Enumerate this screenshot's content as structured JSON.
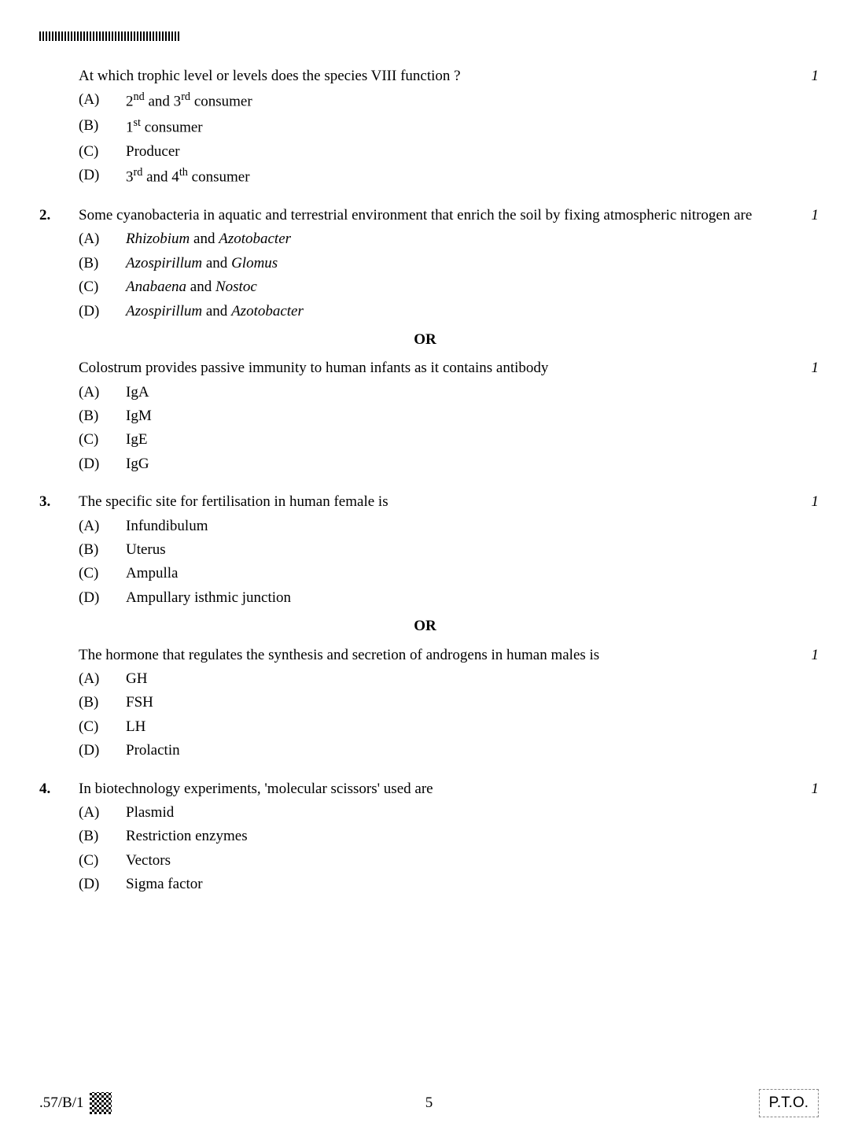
{
  "q1_continued": {
    "stem": "At which trophic level or levels does the species VIII function ?",
    "marks": "1",
    "options": [
      {
        "label": "(A)",
        "html": "2<sup>nd</sup> and 3<sup>rd</sup> consumer"
      },
      {
        "label": "(B)",
        "html": "1<sup>st</sup> consumer"
      },
      {
        "label": "(C)",
        "html": "Producer"
      },
      {
        "label": "(D)",
        "html": "3<sup>rd</sup> and 4<sup>th</sup> consumer"
      }
    ]
  },
  "q2": {
    "number": "2.",
    "stem": "Some cyanobacteria in aquatic and terrestrial environment that enrich the soil by fixing atmospheric nitrogen are",
    "marks": "1",
    "options": [
      {
        "label": "(A)",
        "html": "<span class=\"italic\">Rhizobium</span> and <span class=\"italic\">Azotobacter</span>"
      },
      {
        "label": "(B)",
        "html": "<span class=\"italic\">Azospirillum</span> and <span class=\"italic\">Glomus</span>"
      },
      {
        "label": "(C)",
        "html": "<span class=\"italic\">Anabaena</span> and <span class=\"italic\">Nostoc</span>"
      },
      {
        "label": "(D)",
        "html": "<span class=\"italic\">Azospirillum</span> and <span class=\"italic\">Azotobacter</span>"
      }
    ],
    "or_label": "OR",
    "alt_stem": "Colostrum provides passive immunity to human infants as it contains antibody",
    "alt_marks": "1",
    "alt_options": [
      {
        "label": "(A)",
        "text": "IgA"
      },
      {
        "label": "(B)",
        "text": "IgM"
      },
      {
        "label": "(C)",
        "text": "IgE"
      },
      {
        "label": "(D)",
        "text": "IgG"
      }
    ]
  },
  "q3": {
    "number": "3.",
    "stem": "The specific site for fertilisation in human female is",
    "marks": "1",
    "options": [
      {
        "label": "(A)",
        "text": "Infundibulum"
      },
      {
        "label": "(B)",
        "text": "Uterus"
      },
      {
        "label": "(C)",
        "text": "Ampulla"
      },
      {
        "label": "(D)",
        "text": "Ampullary isthmic junction"
      }
    ],
    "or_label": "OR",
    "alt_stem": "The hormone that regulates the synthesis and secretion of androgens in human males is",
    "alt_marks": "1",
    "alt_options": [
      {
        "label": "(A)",
        "text": "GH"
      },
      {
        "label": "(B)",
        "text": "FSH"
      },
      {
        "label": "(C)",
        "text": "LH"
      },
      {
        "label": "(D)",
        "text": "Prolactin"
      }
    ]
  },
  "q4": {
    "number": "4.",
    "stem": "In biotechnology experiments, 'molecular scissors' used are",
    "marks": "1",
    "options": [
      {
        "label": "(A)",
        "text": "Plasmid"
      },
      {
        "label": "(B)",
        "text": "Restriction enzymes"
      },
      {
        "label": "(C)",
        "text": "Vectors"
      },
      {
        "label": "(D)",
        "text": "Sigma factor"
      }
    ]
  },
  "footer": {
    "code": ".57/B/1",
    "page": "5",
    "pto": "P.T.O."
  }
}
